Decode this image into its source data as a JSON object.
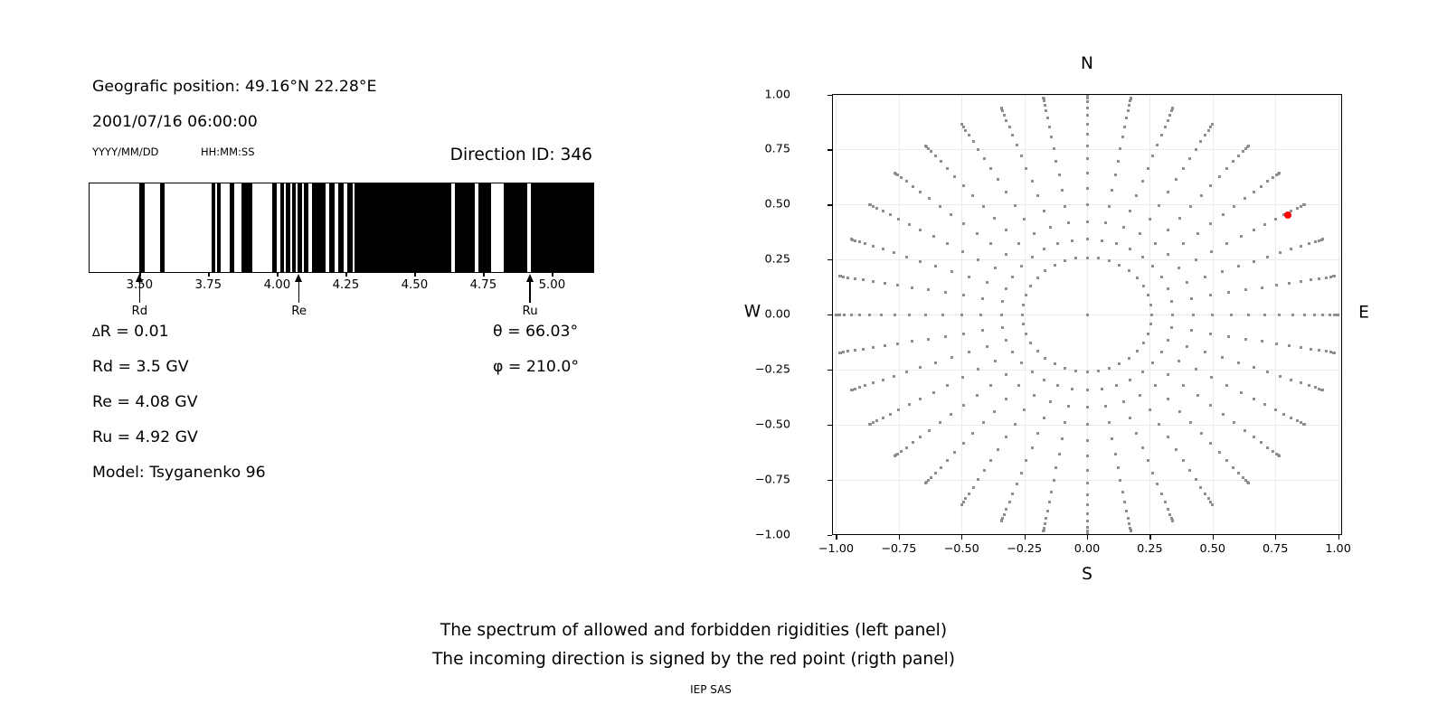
{
  "header": {
    "geo_position": "Geografic position: 49.16°N 22.28°E",
    "datetime": "2001/07/16 06:00:00",
    "date_format_label": "YYYY/MM/DD",
    "time_format_label": "HH:MM:SS",
    "direction_id": "Direction ID: 346"
  },
  "params": {
    "delta_symbol": "∆",
    "delta_r_rest": "R = 0.01",
    "rd": "Rd = 3.5 GV",
    "re": "Re = 4.08 GV",
    "ru": "Ru = 4.92 GV",
    "model": "Model: Tsyganenko 96",
    "theta": "θ = 66.03°",
    "phi": "φ = 210.0°"
  },
  "caption": {
    "line1": "The spectrum of allowed and forbidden rigidities (left panel)",
    "line2": "The incoming direction is signed by the red point (rigth panel)",
    "credit": "IEP SAS"
  },
  "chart_data": [
    {
      "type": "barcode-spectrum",
      "title": "Spectrum of allowed (white) and forbidden (black) rigidities",
      "xlabel_units": "GV",
      "xlim": [
        3.318,
        5.15
      ],
      "xticks": [
        3.5,
        3.75,
        4.0,
        4.25,
        4.5,
        4.75,
        5.0
      ],
      "xtick_labels": [
        "3.50",
        "3.75",
        "4.00",
        "4.25",
        "4.50",
        "4.75",
        "5.00"
      ],
      "forbidden_bands_gv": [
        [
          3.5,
          3.518
        ],
        [
          3.575,
          3.591
        ],
        [
          3.763,
          3.775
        ],
        [
          3.78,
          3.793
        ],
        [
          3.828,
          3.844
        ],
        [
          3.871,
          3.91
        ],
        [
          3.983,
          3.999
        ],
        [
          4.012,
          4.024
        ],
        [
          4.032,
          4.047
        ],
        [
          4.055,
          4.068
        ],
        [
          4.075,
          4.09
        ],
        [
          4.098,
          4.114
        ],
        [
          4.127,
          4.177
        ],
        [
          4.19,
          4.209
        ],
        [
          4.223,
          4.242
        ],
        [
          4.255,
          4.275
        ],
        [
          4.282,
          4.633
        ],
        [
          4.646,
          4.72
        ],
        [
          4.733,
          4.777
        ],
        [
          4.823,
          4.911
        ],
        [
          4.924,
          5.15
        ]
      ],
      "markers": [
        {
          "label": "Rd",
          "gv": 3.5
        },
        {
          "label": "Re",
          "gv": 4.08
        },
        {
          "label": "Ru",
          "gv": 4.92
        }
      ],
      "band_color": "#000000"
    },
    {
      "type": "scatter",
      "compass": {
        "top": "N",
        "bottom": "S",
        "left": "W",
        "right": "E"
      },
      "xlim": [
        -1.016,
        1.016
      ],
      "ylim": [
        -1.004,
        1.004
      ],
      "xticks": [
        -1.0,
        -0.75,
        -0.5,
        -0.25,
        0.0,
        0.25,
        0.5,
        0.75,
        1.0
      ],
      "xtick_labels": [
        "−1.00",
        "−0.75",
        "−0.50",
        "−0.25",
        "0.00",
        "0.25",
        "0.50",
        "0.75",
        "1.00"
      ],
      "yticks": [
        1.0,
        0.75,
        0.5,
        0.25,
        0.0,
        -0.25,
        -0.5,
        -0.75,
        -1.0
      ],
      "ytick_labels": [
        "1.00",
        "0.75",
        "0.50",
        "0.25",
        "0.00",
        "−0.25",
        "−0.50",
        "−0.75",
        "−1.00"
      ],
      "grid": true,
      "spokes": {
        "azimuth_start_deg": 0,
        "azimuth_step_deg": 10,
        "azimuth_count": 36,
        "zenith_min_deg": 15,
        "zenith_max_deg": 90,
        "zenith_step_deg": 5,
        "radius_rule": "sin(zenith)"
      },
      "center_dot": {
        "x": 0.0,
        "y": 0.0
      },
      "red_point": {
        "x": 0.8,
        "y": 0.45
      },
      "colors": {
        "dots": "#8e8e8e",
        "red_point": "#ff0000",
        "grid": "#ebebeb"
      }
    }
  ]
}
